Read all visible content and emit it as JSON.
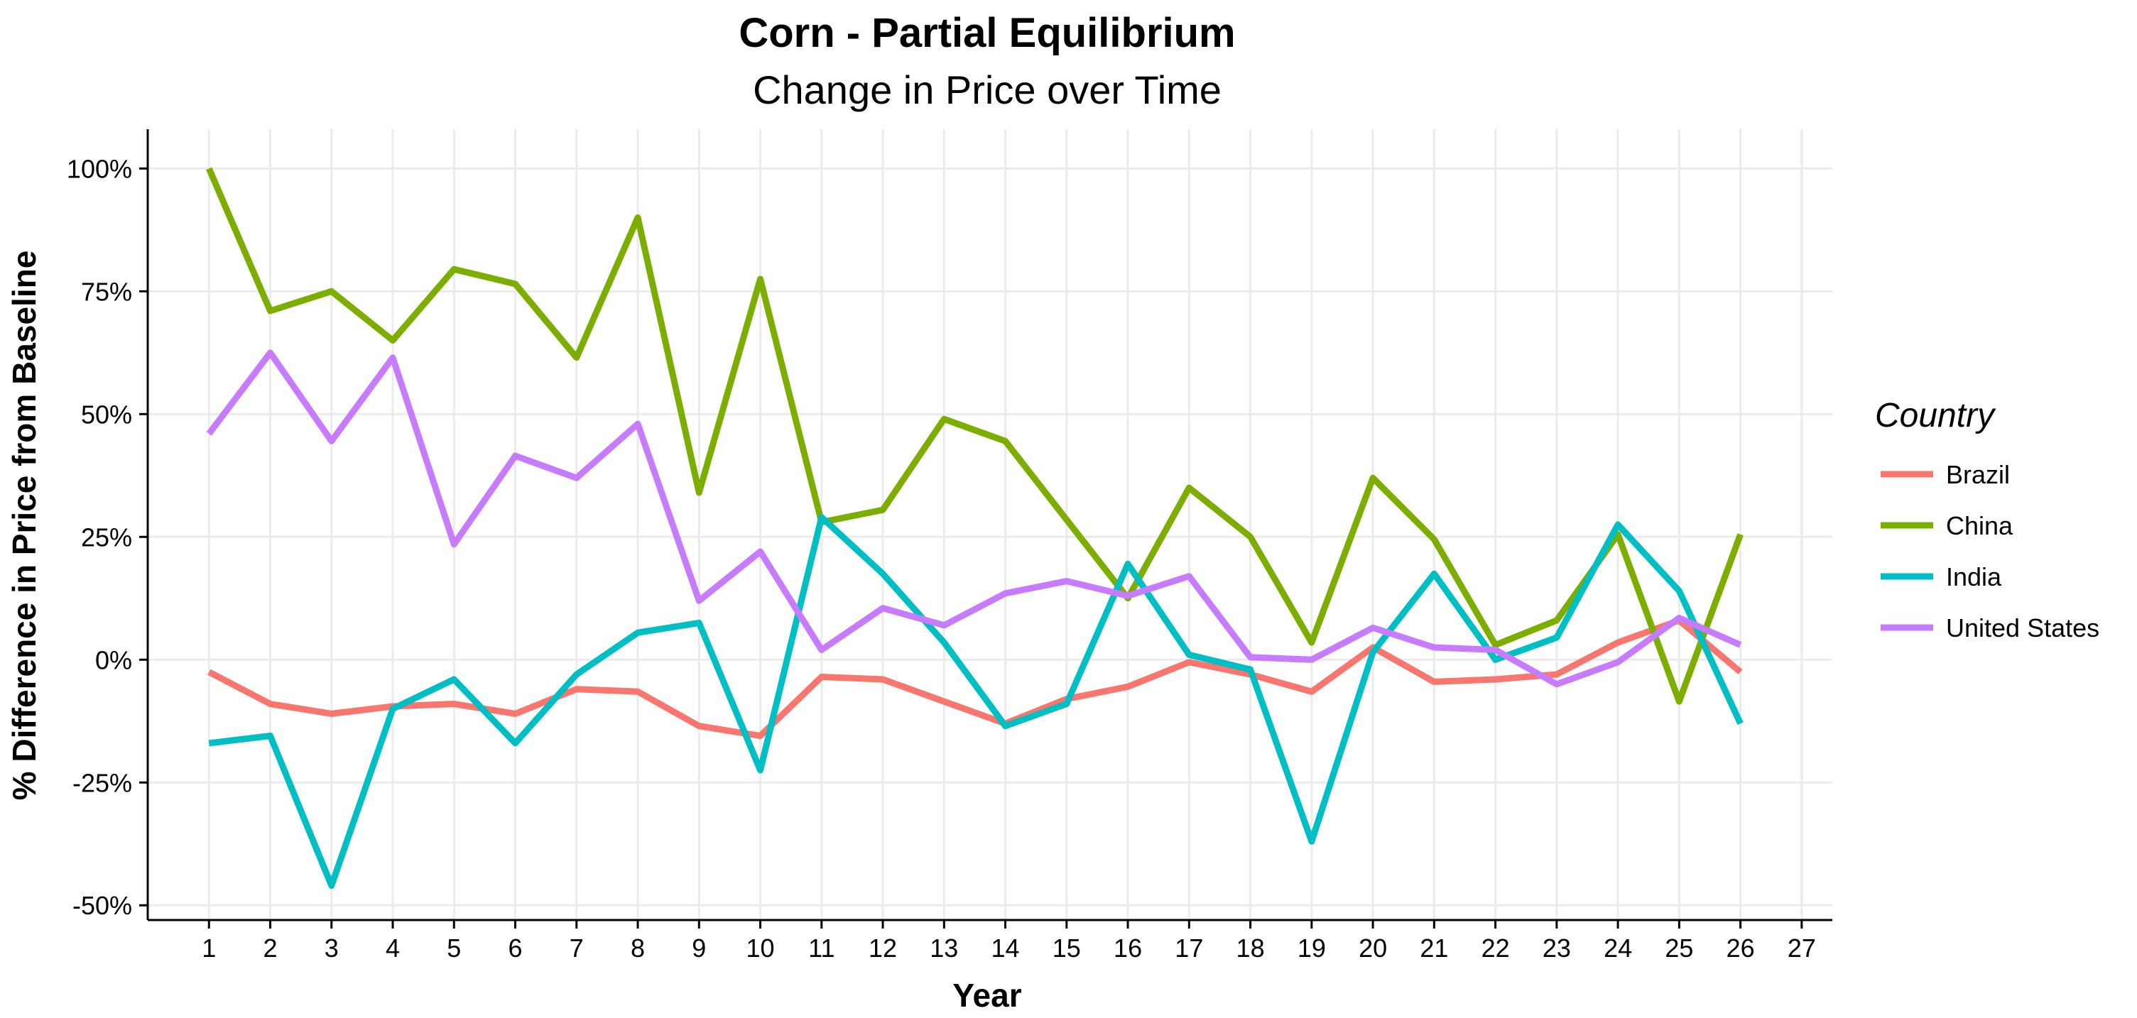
{
  "chart_data": {
    "type": "line",
    "title": "Corn - Partial Equilibrium",
    "subtitle": "Change in Price over Time",
    "xlabel": "Year",
    "ylabel": "% Difference in Price from Baseline",
    "x": [
      1,
      2,
      3,
      4,
      5,
      6,
      7,
      8,
      9,
      10,
      11,
      12,
      13,
      14,
      15,
      16,
      17,
      18,
      19,
      20,
      21,
      22,
      23,
      24,
      25,
      26
    ],
    "x_ticks": [
      "1",
      "2",
      "3",
      "4",
      "5",
      "6",
      "7",
      "8",
      "9",
      "10",
      "11",
      "12",
      "13",
      "14",
      "15",
      "16",
      "17",
      "18",
      "19",
      "20",
      "21",
      "22",
      "23",
      "24",
      "25",
      "26",
      "27"
    ],
    "xlim": [
      0,
      27.5
    ],
    "y_ticks": [
      -50,
      -25,
      0,
      25,
      50,
      75,
      100
    ],
    "y_tick_labels": [
      "-50%",
      "-25%",
      "0%",
      "25%",
      "50%",
      "75%",
      "100%"
    ],
    "ylim": [
      -53,
      108
    ],
    "grid": true,
    "legend_title": "Country",
    "legend_position": "right",
    "series": [
      {
        "name": "Brazil",
        "color": "#F8766D",
        "values": [
          -2.5,
          -9,
          -11,
          -9.5,
          -9,
          -11,
          -6,
          -6.5,
          -13.5,
          -15.5,
          -3.5,
          -4,
          -8.5,
          -13,
          -8,
          -5.5,
          -0.5,
          -3,
          -6.5,
          2.5,
          -4.5,
          -4,
          -3,
          3.5,
          8,
          -2.5
        ]
      },
      {
        "name": "China",
        "color": "#7CAE00",
        "values": [
          100,
          71,
          75,
          65,
          79.5,
          76.5,
          61.5,
          90,
          34,
          77.5,
          28,
          30.5,
          49,
          44.5,
          28.5,
          12.5,
          35,
          25,
          3.5,
          37,
          24.5,
          3,
          8,
          25.5,
          -8.5,
          25.5
        ]
      },
      {
        "name": "India",
        "color": "#00BFC4",
        "values": [
          -17,
          -15.5,
          -46,
          -10,
          -4,
          -17,
          -3,
          5.5,
          7.5,
          -22.5,
          29,
          17.5,
          3.5,
          -13.5,
          -9,
          19.5,
          1,
          -2,
          -37,
          1.5,
          17.5,
          0,
          4.5,
          27.5,
          14,
          -13
        ]
      },
      {
        "name": "United States",
        "color": "#C77CFF",
        "values": [
          46,
          62.5,
          44.5,
          61.5,
          23.5,
          41.5,
          37,
          48,
          12,
          22,
          2,
          10.5,
          7,
          13.5,
          16,
          13,
          17,
          0.5,
          0,
          6.5,
          2.5,
          2,
          -5,
          -0.5,
          8.5,
          3
        ]
      }
    ]
  }
}
